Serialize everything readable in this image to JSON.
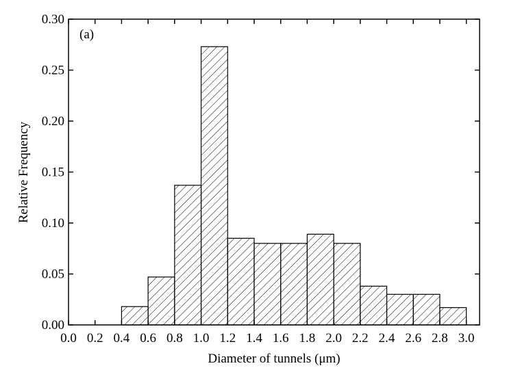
{
  "chart_data": {
    "type": "histogram",
    "x_label": "Diameter of tunnels (μm)",
    "y_label": "Relative Frequency",
    "annotation": "(a)",
    "bins": [
      0.4,
      0.6,
      0.8,
      1.0,
      1.2,
      1.4,
      1.6,
      1.8,
      2.0,
      2.2,
      2.4,
      2.6,
      2.8,
      3.0
    ],
    "values": [
      0.018,
      0.047,
      0.137,
      0.273,
      0.085,
      0.08,
      0.08,
      0.089,
      0.08,
      0.038,
      0.03,
      0.03,
      0.017
    ],
    "color": "#000000",
    "xlim": [
      0,
      3.1
    ],
    "ylim": [
      0,
      0.3
    ],
    "xticks": [
      {
        "value": 0,
        "label": "0.0"
      },
      0.2,
      0.4,
      0.6,
      0.8,
      {
        "value": 1,
        "label": "1.0"
      },
      1.2,
      1.4,
      1.6,
      1.8,
      {
        "value": 2,
        "label": "2.0"
      },
      2.2,
      2.4,
      2.6,
      2.8,
      {
        "value": 3,
        "label": "3.0"
      }
    ],
    "yticks": [
      {
        "value": 0,
        "label": "0.00"
      },
      0.05,
      {
        "value": 0.1,
        "label": "0.10"
      },
      0.15,
      {
        "value": 0.2,
        "label": "0.20"
      },
      0.25,
      {
        "value": 0.3,
        "label": "0.30"
      }
    ]
  }
}
